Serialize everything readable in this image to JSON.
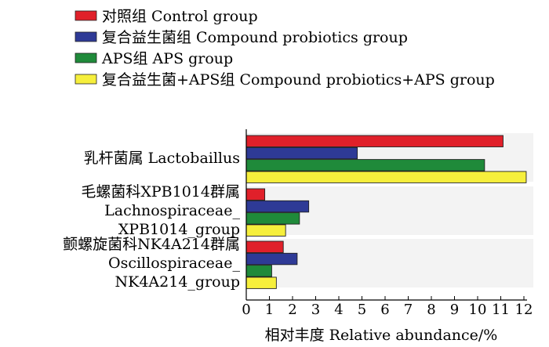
{
  "chart_data": {
    "type": "bar",
    "orientation": "horizontal",
    "title": "",
    "xlabel": "相对丰度 Relative abundance/%",
    "ylabel": "",
    "xlim": [
      0,
      12
    ],
    "xticks": [
      0,
      1,
      2,
      3,
      4,
      5,
      6,
      7,
      8,
      9,
      10,
      11,
      12
    ],
    "grid": false,
    "legend_position": "top-left",
    "categories": [
      {
        "lines": [
          "乳杆菌属 Lactobaillus"
        ]
      },
      {
        "lines": [
          "毛螺菌科XPB1014群属",
          "Lachnospiraceae_",
          "XPB1014_group"
        ]
      },
      {
        "lines": [
          "颤螺旋菌科NK4A214群属",
          "Oscillospiraceae_",
          "NK4A214_group"
        ]
      }
    ],
    "series": [
      {
        "name": "对照组 Control group",
        "color": "#e0202a",
        "values": [
          11.1,
          0.8,
          1.6
        ]
      },
      {
        "name": "复合益生菌组 Compound probiotics group",
        "color": "#2e3a96",
        "values": [
          4.8,
          2.7,
          2.2
        ]
      },
      {
        "name": "APS组 APS group",
        "color": "#1f8a3a",
        "values": [
          10.3,
          2.3,
          1.1
        ]
      },
      {
        "name": "复合益生菌+APS组 Compound probiotics+APS group",
        "color": "#f6ef3c",
        "values": [
          12.1,
          1.7,
          1.3
        ]
      }
    ],
    "colors": {
      "band": "#f3f3f3",
      "axis": "#000000"
    }
  }
}
